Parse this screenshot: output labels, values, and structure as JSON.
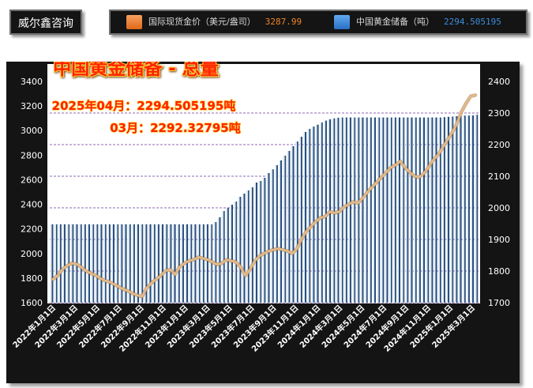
{
  "brand": {
    "name": "威尔鑫咨询"
  },
  "legend": [
    {
      "label": "国际现货金价（美元/盎司）",
      "value": "3287.99",
      "swatch_color": "#f08428",
      "value_color": "#f08428"
    },
    {
      "label": "中国黄金储备（吨）",
      "value": "2294.505195",
      "swatch_color": "#3c8cdc",
      "value_color": "#3c8cdc"
    }
  ],
  "chart_data": {
    "type": "bar",
    "title": "中国黄金储备 - 总量",
    "annotations": [
      "2025年04月：2294.505195吨",
      "03月：2292.32795吨"
    ],
    "x_tick_labels": [
      "2022年1月1日",
      "2022年3月1日",
      "2022年5月1日",
      "2022年7月1日",
      "2022年9月1日",
      "2022年11月1日",
      "2023年1月1日",
      "2023年3月1日",
      "2023年5月1日",
      "2023年7月1日",
      "2023年9月1日",
      "2023年11月1日",
      "2024年1月1日",
      "2024年3月1日",
      "2024年5月1日",
      "2024年7月1日",
      "2024年9月1日",
      "2024年11月1日",
      "2025年1月1日",
      "2025年3月1日"
    ],
    "y_left": {
      "min": 1600,
      "max": 3400,
      "ticks": [
        1600,
        1800,
        2000,
        2200,
        2400,
        2600,
        2800,
        3000,
        3200,
        3400
      ]
    },
    "y_right": {
      "min": 1700,
      "max": 2400,
      "ticks": [
        1700,
        1800,
        1900,
        2000,
        2100,
        2200,
        2300,
        2400
      ]
    },
    "gridlines": [
      1700,
      1800,
      1900,
      2000,
      2100,
      2200,
      2300
    ],
    "series": [
      {
        "name": "中国黄金储备（吨）",
        "type": "bar",
        "axis": "right",
        "values": [
          1948,
          1948,
          1948,
          1948,
          1948,
          1948,
          1948,
          1948,
          1948,
          1948,
          1948,
          1948,
          1948,
          1948,
          1948,
          1948,
          1948,
          1948,
          1948,
          1948,
          1948,
          1948,
          1948,
          1948,
          1948,
          1948,
          1948,
          1948,
          1948,
          1948,
          1948,
          1948,
          1948,
          1948,
          1948,
          1948,
          1948,
          1948,
          1948,
          1948,
          1955,
          1970,
          1990,
          2000,
          2010,
          2020,
          2035,
          2045,
          2055,
          2065,
          2080,
          2085,
          2095,
          2110,
          2122,
          2135,
          2150,
          2165,
          2180,
          2195,
          2210,
          2225,
          2240,
          2250,
          2257,
          2263,
          2270,
          2276,
          2280,
          2283,
          2285,
          2286,
          2286,
          2286,
          2286,
          2286,
          2286,
          2286,
          2286,
          2286,
          2286,
          2286,
          2286,
          2286,
          2286,
          2286,
          2286,
          2286,
          2286,
          2286,
          2286,
          2286,
          2286,
          2286,
          2286,
          2286,
          2287,
          2288,
          2289,
          2290,
          2291,
          2292,
          2292,
          2292.32795,
          2294.505195
        ]
      },
      {
        "name": "国际现货金价（美元/盎司）",
        "type": "line",
        "axis": "left",
        "values": [
          1790,
          1820,
          1870,
          1900,
          1920,
          1915,
          1890,
          1860,
          1840,
          1825,
          1800,
          1780,
          1770,
          1750,
          1730,
          1710,
          1695,
          1675,
          1660,
          1650,
          1720,
          1760,
          1790,
          1820,
          1860,
          1870,
          1830,
          1890,
          1920,
          1940,
          1950,
          1970,
          1960,
          1950,
          1930,
          1910,
          1920,
          1950,
          1940,
          1930,
          1890,
          1820,
          1870,
          1940,
          1980,
          2000,
          2020,
          2030,
          2040,
          2030,
          2020,
          2000,
          2040,
          2120,
          2180,
          2220,
          2260,
          2290,
          2300,
          2340,
          2330,
          2340,
          2380,
          2400,
          2420,
          2410,
          2450,
          2500,
          2540,
          2580,
          2620,
          2660,
          2700,
          2720,
          2750,
          2700,
          2660,
          2630,
          2620,
          2650,
          2700,
          2760,
          2800,
          2860,
          2920,
          2980,
          3050,
          3150,
          3220,
          3280,
          3287.99
        ]
      }
    ]
  }
}
